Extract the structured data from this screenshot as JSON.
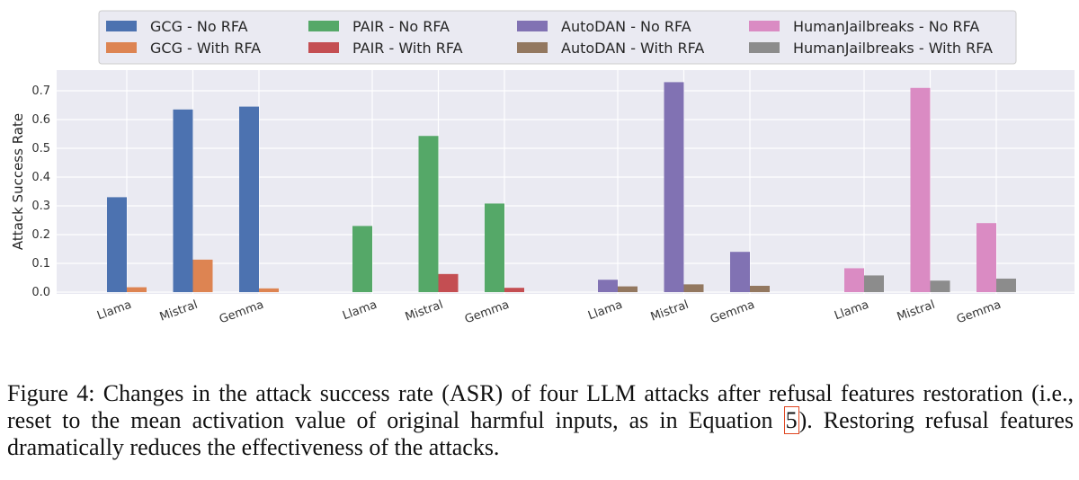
{
  "chart_data": {
    "type": "bar",
    "ylabel": "Attack Success Rate",
    "xlabel": "",
    "ylim": [
      0,
      0.75
    ],
    "yticks": [
      "0.0",
      "0.1",
      "0.2",
      "0.3",
      "0.4",
      "0.5",
      "0.6",
      "0.7"
    ],
    "grid": true,
    "legend_position": "top",
    "groups": [
      {
        "attack": "GCG",
        "categories": [
          "Llama",
          "Mistral",
          "Gemma"
        ],
        "series": [
          {
            "name": "GCG - No RFA",
            "color": "#4c72b0",
            "values": [
              0.33,
              0.635,
              0.645
            ]
          },
          {
            "name": "GCG - With RFA",
            "color": "#dd8452",
            "values": [
              0.017,
              0.113,
              0.013
            ]
          }
        ]
      },
      {
        "attack": "PAIR",
        "categories": [
          "Llama",
          "Mistral",
          "Gemma"
        ],
        "series": [
          {
            "name": "PAIR - No RFA",
            "color": "#55a868",
            "values": [
              0.23,
              0.543,
              0.308
            ]
          },
          {
            "name": "PAIR - With RFA",
            "color": "#c44e52",
            "values": [
              0.0,
              0.063,
              0.015
            ]
          }
        ]
      },
      {
        "attack": "AutoDAN",
        "categories": [
          "Llama",
          "Mistral",
          "Gemma"
        ],
        "series": [
          {
            "name": "AutoDAN - No RFA",
            "color": "#8172b3",
            "values": [
              0.043,
              0.73,
              0.14
            ]
          },
          {
            "name": "AutoDAN - With RFA",
            "color": "#937860",
            "values": [
              0.02,
              0.027,
              0.022
            ]
          }
        ]
      },
      {
        "attack": "HumanJailbreaks",
        "categories": [
          "Llama",
          "Mistral",
          "Gemma"
        ],
        "series": [
          {
            "name": "HumanJailbreaks - No RFA",
            "color": "#da8bc3",
            "values": [
              0.083,
              0.71,
              0.24
            ]
          },
          {
            "name": "HumanJailbreaks - With RFA",
            "color": "#8c8c8c",
            "values": [
              0.058,
              0.04,
              0.047
            ]
          }
        ]
      }
    ]
  },
  "caption": {
    "before_ref": "Figure 4: Changes in the attack success rate (ASR) of four LLM attacks after refusal features restoration (i.e., reset to the mean activation value of original harmful inputs, as in Equation ",
    "ref": "5",
    "after_ref": "). Restoring refusal features dramatically reduces the effectiveness of the attacks."
  }
}
